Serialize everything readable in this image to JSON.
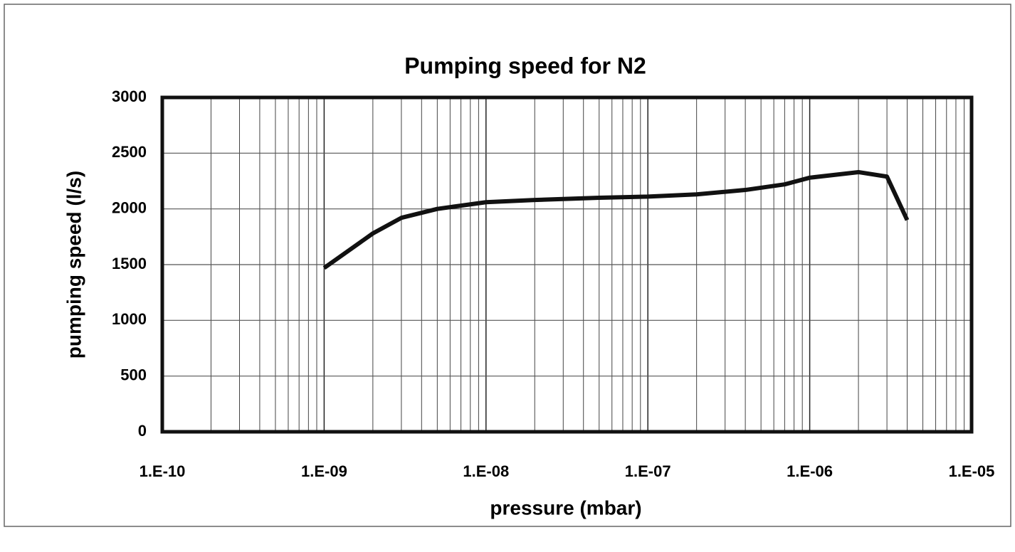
{
  "chart_data": {
    "type": "line",
    "title": "Pumping speed for N2",
    "x_label": "pressure (mbar)",
    "y_label": "pumping speed (l/s)",
    "x": [
      1e-09,
      2e-09,
      3e-09,
      5e-09,
      1e-08,
      2e-08,
      5e-08,
      1e-07,
      2e-07,
      4e-07,
      7e-07,
      1e-06,
      2e-06,
      3e-06,
      4e-06
    ],
    "series": [
      {
        "name": "N2",
        "color": "#111111",
        "values": [
          1470,
          1780,
          1920,
          2000,
          2060,
          2080,
          2100,
          2110,
          2130,
          2170,
          2220,
          2280,
          2330,
          2290,
          1900
        ]
      }
    ],
    "xlim": [
      1e-10,
      1e-05
    ],
    "xticks": [
      {
        "value": 1e-10,
        "label": "1.E-10"
      },
      {
        "value": 1e-09,
        "label": "1.E-09"
      },
      {
        "value": 1e-08,
        "label": "1.E-08"
      },
      {
        "value": 1e-07,
        "label": "1.E-07"
      },
      {
        "value": 1e-06,
        "label": "1.E-06"
      },
      {
        "value": 1e-05,
        "label": "1.E-05"
      }
    ],
    "ylim": [
      0,
      3000
    ],
    "yticks": [
      0,
      500,
      1000,
      1500,
      2000,
      2500,
      3000
    ],
    "x_log": true,
    "grid": true,
    "minor_grid": true,
    "legend": false
  }
}
